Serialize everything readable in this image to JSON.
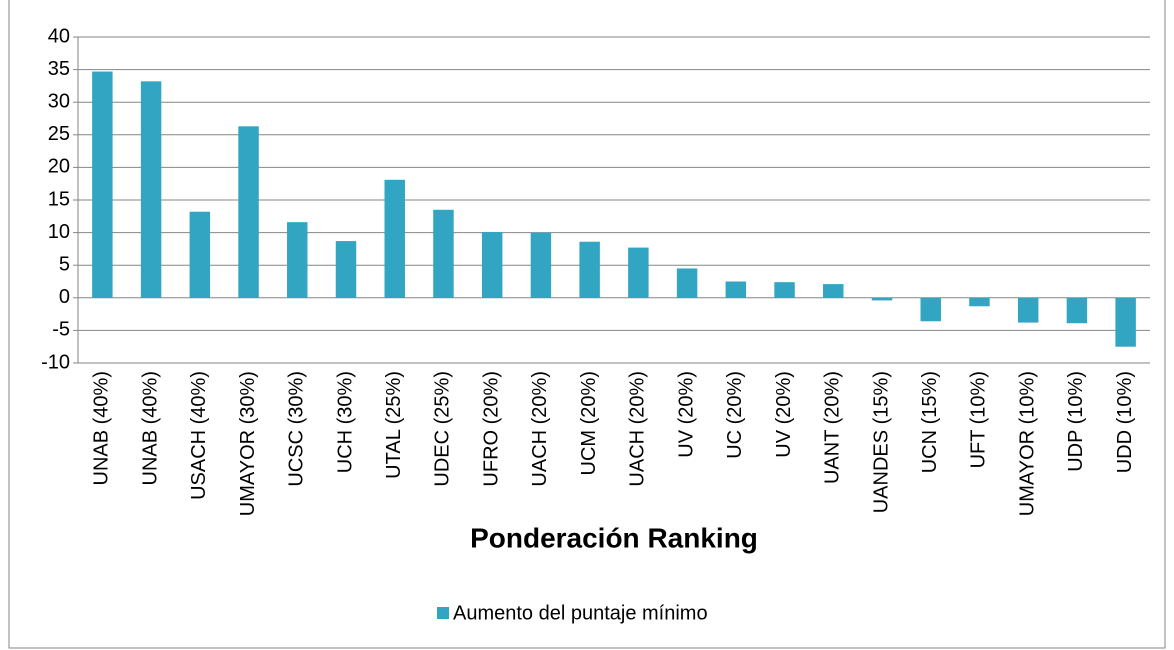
{
  "chart_data": {
    "type": "bar",
    "x_label": "Ponderación Ranking",
    "categories": [
      "UNAB (40%)",
      "UNAB (40%)",
      "USACH (40%)",
      "UMAYOR (30%)",
      "UCSC (30%)",
      "UCH (30%)",
      "UTAL (25%)",
      "UDEC (25%)",
      "UFRO (20%)",
      "UACH (20%)",
      "UCM (20%)",
      "UACH (20%)",
      "UV (20%)",
      "UC (20%)",
      "UV (20%)",
      "UANT (20%)",
      "UANDES (15%)",
      "UCN (15%)",
      "UFT (10%)",
      "UMAYOR (10%)",
      "UDP (10%)",
      "UDD (10%)"
    ],
    "series": [
      {
        "name": "Aumento del puntaje mínimo",
        "color": "#31a5c1",
        "values": [
          34.7,
          33.2,
          13.2,
          26.3,
          11.6,
          8.7,
          18.1,
          13.5,
          10.1,
          10.0,
          8.6,
          7.7,
          4.5,
          2.5,
          2.4,
          2.1,
          -0.4,
          -3.6,
          -1.3,
          -3.8,
          -3.9,
          -7.5
        ]
      }
    ],
    "ylim": [
      -10,
      40
    ],
    "yticks": [
      -10,
      -5,
      0,
      5,
      10,
      15,
      20,
      25,
      30,
      35,
      40
    ],
    "grid": true,
    "legend": "bottom"
  }
}
